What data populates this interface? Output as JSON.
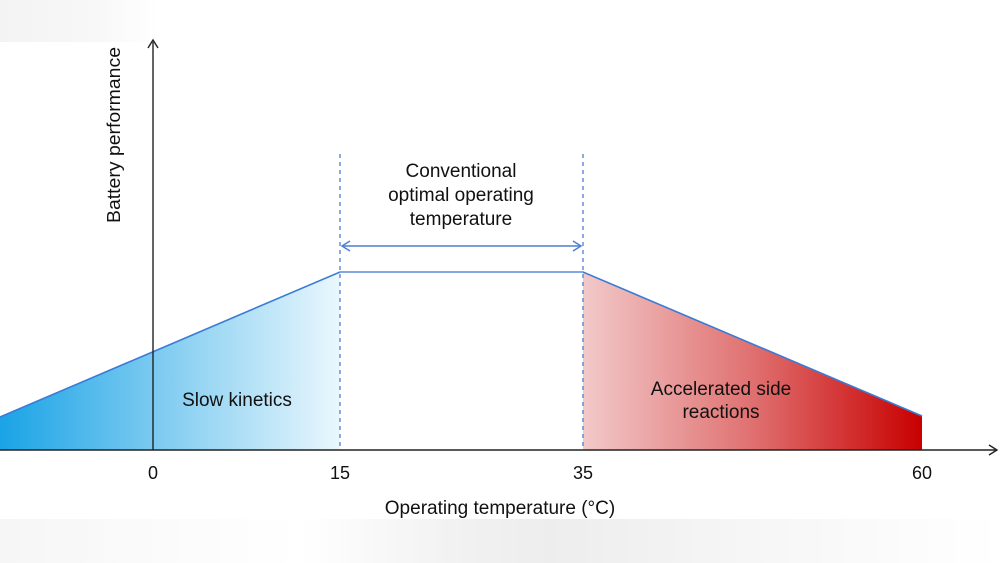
{
  "axes": {
    "x_label": "Operating temperature (°C)",
    "y_label": "Battery performance",
    "x_ticks": [
      "0",
      "15",
      "35",
      "60"
    ]
  },
  "optimal_range": {
    "label_lines": [
      "Conventional",
      "optimal operating",
      "temperature"
    ],
    "from": 15,
    "to": 35
  },
  "regions": {
    "low": {
      "label": "Slow kinetics"
    },
    "high": {
      "label_lines": [
        "Accelerated side",
        "reactions"
      ]
    }
  },
  "colors": {
    "cold": "#1aa3e6",
    "hot": "#c80000",
    "guide": "#4f7fd1",
    "axis": "#222222"
  }
}
